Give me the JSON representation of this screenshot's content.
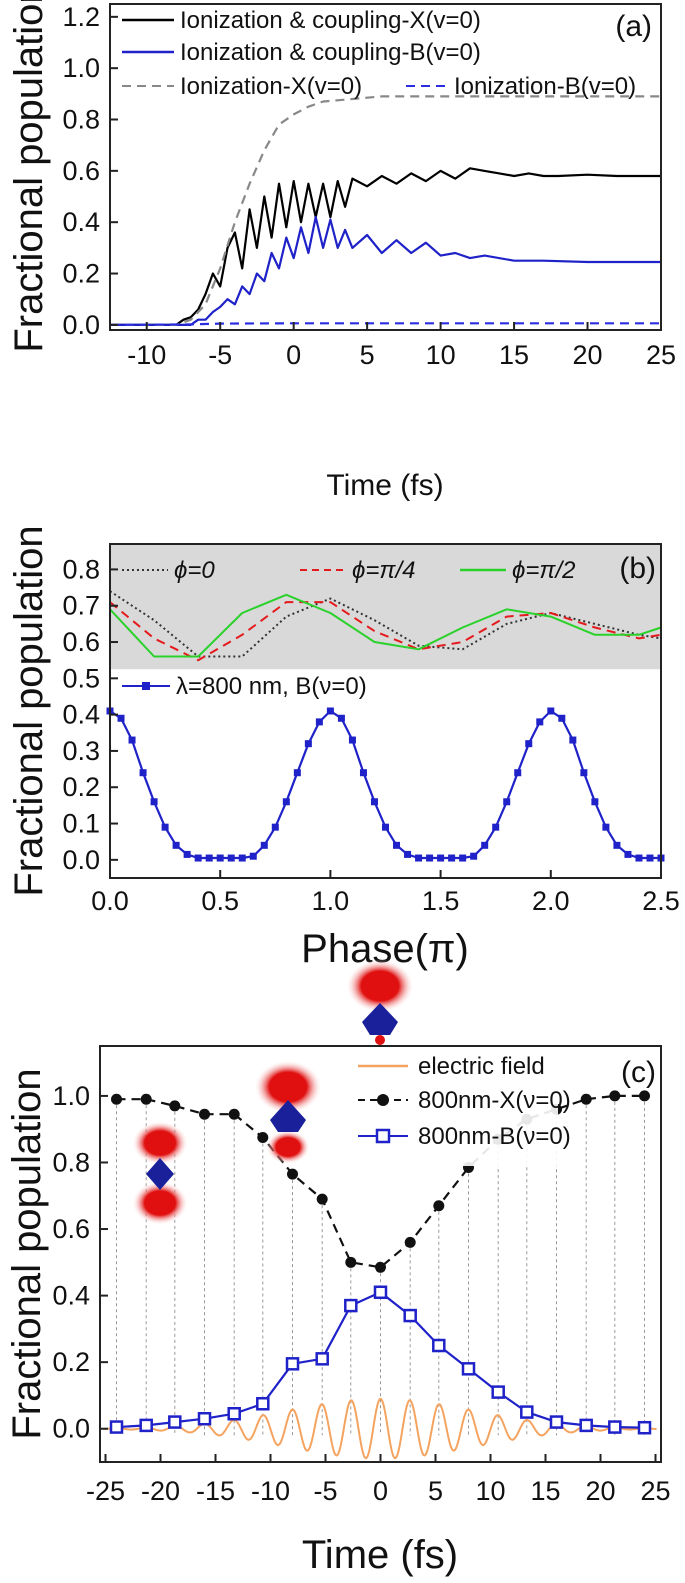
{
  "chart_data": [
    {
      "panel": "(a)",
      "type": "line",
      "xlabel": "Time (fs)",
      "ylabel": "Fractional population",
      "xlim": [
        -12.5,
        25
      ],
      "ylim": [
        -0.02,
        1.25
      ],
      "xticks": [
        -10,
        -5,
        0,
        5,
        10,
        15,
        20,
        25
      ],
      "xtick_labels": [
        "-10",
        "-5",
        "0",
        "5",
        "10",
        "15",
        "20",
        "25"
      ],
      "yticks": [
        0.0,
        0.2,
        0.4,
        0.6,
        0.8,
        1.0,
        1.2
      ],
      "ytick_labels": [
        "0.0",
        "0.2",
        "0.4",
        "0.6",
        "0.8",
        "1.0",
        "1.2"
      ],
      "series": [
        {
          "name": "Ionization & coupling-X(v=0)",
          "color": "#000000",
          "dash": "solid",
          "x": [
            -12.5,
            -8,
            -7.5,
            -7,
            -6.5,
            -6,
            -5.5,
            -5,
            -4.5,
            -4,
            -3.5,
            -3,
            -2.5,
            -2,
            -1.5,
            -1,
            -0.5,
            0,
            0.5,
            1,
            1.5,
            2,
            2.5,
            3,
            3.5,
            4,
            5,
            6,
            7,
            8,
            9,
            10,
            11,
            12,
            13,
            14,
            15,
            16,
            17,
            18,
            20,
            22,
            25
          ],
          "y": [
            0,
            0,
            0.02,
            0.03,
            0.06,
            0.12,
            0.2,
            0.15,
            0.3,
            0.36,
            0.22,
            0.45,
            0.3,
            0.5,
            0.34,
            0.55,
            0.38,
            0.56,
            0.4,
            0.55,
            0.42,
            0.55,
            0.42,
            0.56,
            0.46,
            0.57,
            0.54,
            0.58,
            0.55,
            0.59,
            0.56,
            0.6,
            0.57,
            0.61,
            0.6,
            0.59,
            0.58,
            0.59,
            0.58,
            0.58,
            0.585,
            0.58,
            0.58
          ]
        },
        {
          "name": "Ionization & coupling-B(v=0)",
          "color": "#1f22c8",
          "dash": "solid",
          "x": [
            -12.5,
            -7,
            -6.5,
            -6,
            -5.5,
            -5,
            -4.5,
            -4,
            -3.5,
            -3,
            -2.5,
            -2,
            -1.5,
            -1,
            -0.5,
            0,
            0.5,
            1,
            1.5,
            2,
            2.5,
            3,
            3.5,
            4,
            5,
            6,
            7,
            8,
            9,
            10,
            11,
            12,
            13,
            15,
            17,
            20,
            22,
            25
          ],
          "y": [
            0,
            0,
            0.02,
            0.02,
            0.05,
            0.07,
            0.1,
            0.08,
            0.15,
            0.12,
            0.2,
            0.17,
            0.28,
            0.22,
            0.34,
            0.26,
            0.38,
            0.28,
            0.42,
            0.3,
            0.41,
            0.3,
            0.37,
            0.3,
            0.35,
            0.28,
            0.33,
            0.28,
            0.32,
            0.27,
            0.28,
            0.26,
            0.27,
            0.25,
            0.25,
            0.245,
            0.245,
            0.245
          ]
        },
        {
          "name": "Ionization-X(v=0)",
          "color": "#888888",
          "dash": "dashed",
          "x": [
            -12.5,
            -8,
            -7,
            -6,
            -5,
            -4,
            -3,
            -2,
            -1,
            0,
            1,
            2,
            3,
            4,
            5,
            6,
            8,
            10,
            15,
            20,
            25
          ],
          "y": [
            0,
            0,
            0.02,
            0.08,
            0.22,
            0.4,
            0.55,
            0.68,
            0.78,
            0.82,
            0.85,
            0.87,
            0.875,
            0.88,
            0.885,
            0.89,
            0.89,
            0.89,
            0.89,
            0.89,
            0.89
          ]
        },
        {
          "name": "Ionization-B(v=0)",
          "color": "#2a2de0",
          "dash": "dashed",
          "x": [
            -12.5,
            -7,
            -5,
            0,
            5,
            10,
            15,
            20,
            25
          ],
          "y": [
            0,
            0.002,
            0.005,
            0.006,
            0.006,
            0.006,
            0.006,
            0.006,
            0.006
          ]
        }
      ],
      "annotation": "(a)"
    },
    {
      "panel": "(b)",
      "type": "line",
      "xlabel": "Phase(π)",
      "ylabel": "Fractional population",
      "xlim": [
        0,
        2.5
      ],
      "ylim": [
        -0.05,
        0.87
      ],
      "xticks": [
        0.0,
        0.5,
        1.0,
        1.5,
        2.0,
        2.5
      ],
      "xtick_labels": [
        "0.0",
        "0.5",
        "1.0",
        "1.5",
        "2.0",
        "2.5"
      ],
      "yticks": [
        0.0,
        0.1,
        0.2,
        0.3,
        0.4,
        0.5,
        0.6,
        0.7,
        0.8
      ],
      "ytick_labels": [
        "0.0",
        "0.1",
        "0.2",
        "0.3",
        "0.4",
        "0.5",
        "0.6",
        "0.7",
        "0.8"
      ],
      "shaded_band": [
        0.525,
        0.87
      ],
      "inset_series": [
        {
          "name": "ϕ=0",
          "color": "#333333",
          "dash": "dotted",
          "x": [
            0,
            0.2,
            0.4,
            0.6,
            0.8,
            1.0,
            1.2,
            1.4,
            1.6,
            1.8,
            2.0,
            2.2,
            2.4,
            2.5
          ],
          "y": [
            0.74,
            0.66,
            0.56,
            0.56,
            0.67,
            0.72,
            0.66,
            0.59,
            0.58,
            0.65,
            0.68,
            0.65,
            0.62,
            0.61
          ]
        },
        {
          "name": "ϕ=π/4",
          "color": "#e41a1c",
          "dash": "dashed",
          "x": [
            0,
            0.2,
            0.4,
            0.6,
            0.8,
            1.0,
            1.2,
            1.4,
            1.6,
            1.8,
            2.0,
            2.2,
            2.4,
            2.5
          ],
          "y": [
            0.71,
            0.61,
            0.55,
            0.62,
            0.71,
            0.71,
            0.63,
            0.58,
            0.6,
            0.67,
            0.68,
            0.64,
            0.61,
            0.62
          ]
        },
        {
          "name": "ϕ=π/2",
          "color": "#2bd12b",
          "dash": "solid",
          "x": [
            0,
            0.2,
            0.4,
            0.6,
            0.8,
            1.0,
            1.2,
            1.4,
            1.6,
            1.8,
            2.0,
            2.2,
            2.4,
            2.5
          ],
          "y": [
            0.69,
            0.56,
            0.56,
            0.68,
            0.73,
            0.68,
            0.6,
            0.58,
            0.64,
            0.69,
            0.67,
            0.62,
            0.62,
            0.64
          ]
        }
      ],
      "series": [
        {
          "name": "λ=800 nm, B(ν=0)",
          "color": "#1f22c8",
          "marker": "square",
          "x": [
            0,
            0.05,
            0.1,
            0.15,
            0.2,
            0.25,
            0.3,
            0.35,
            0.4,
            0.45,
            0.5,
            0.55,
            0.6,
            0.65,
            0.7,
            0.75,
            0.8,
            0.85,
            0.9,
            0.95,
            1.0,
            1.05,
            1.1,
            1.15,
            1.2,
            1.25,
            1.3,
            1.35,
            1.4,
            1.45,
            1.5,
            1.55,
            1.6,
            1.65,
            1.7,
            1.75,
            1.8,
            1.85,
            1.9,
            1.95,
            2.0,
            2.05,
            2.1,
            2.15,
            2.2,
            2.25,
            2.3,
            2.35,
            2.4,
            2.45,
            2.5
          ],
          "y": [
            0.41,
            0.39,
            0.33,
            0.24,
            0.16,
            0.09,
            0.04,
            0.015,
            0.005,
            0.005,
            0.005,
            0.005,
            0.005,
            0.01,
            0.04,
            0.09,
            0.16,
            0.24,
            0.32,
            0.38,
            0.41,
            0.39,
            0.33,
            0.24,
            0.16,
            0.09,
            0.04,
            0.015,
            0.005,
            0.005,
            0.005,
            0.005,
            0.005,
            0.01,
            0.04,
            0.09,
            0.16,
            0.24,
            0.32,
            0.38,
            0.41,
            0.39,
            0.33,
            0.24,
            0.16,
            0.09,
            0.04,
            0.015,
            0.005,
            0.005,
            0.005
          ]
        }
      ],
      "annotation": "(b)"
    },
    {
      "panel": "(c)",
      "type": "line",
      "xlabel": "Time (fs)",
      "ylabel": "Fractional population",
      "xlim": [
        -25.5,
        25.5
      ],
      "ylim": [
        -0.1,
        1.15
      ],
      "xticks": [
        -25,
        -20,
        -15,
        -10,
        -5,
        0,
        5,
        10,
        15,
        20,
        25
      ],
      "xtick_labels": [
        "-25",
        "-20",
        "-15",
        "-10",
        "-5",
        "0",
        "5",
        "10",
        "15",
        "20",
        "25"
      ],
      "yticks": [
        0.0,
        0.2,
        0.4,
        0.6,
        0.8,
        1.0
      ],
      "ytick_labels": [
        "0.0",
        "0.2",
        "0.4",
        "0.6",
        "0.8",
        "1.0"
      ],
      "series": [
        {
          "name": "electric field",
          "color": "#f4a460",
          "dash": "solid",
          "kind": "field",
          "amplitude": 0.09,
          "period_fs": 2.67,
          "envelope_fwhm_fs": 20
        },
        {
          "name": "800nm-X(ν=0)",
          "color": "#111111",
          "dash": "dashed",
          "marker": "circle",
          "x": [
            -24,
            -21.3,
            -18.7,
            -16,
            -13.3,
            -10.7,
            -8,
            -5.3,
            -2.7,
            0,
            2.7,
            5.3,
            8,
            10.7,
            13.3,
            16,
            18.7,
            21.3,
            24
          ],
          "y": [
            0.99,
            0.99,
            0.97,
            0.945,
            0.945,
            0.875,
            0.765,
            0.69,
            0.5,
            0.485,
            0.56,
            0.67,
            0.785,
            0.87,
            0.93,
            0.96,
            0.99,
            1.0,
            1.0
          ]
        },
        {
          "name": "800nm-B(ν=0)",
          "color": "#1f22c8",
          "dash": "solid",
          "marker": "square",
          "x": [
            -24,
            -21.3,
            -18.7,
            -16,
            -13.3,
            -10.7,
            -8,
            -5.3,
            -2.7,
            0,
            2.7,
            5.3,
            8,
            10.7,
            13.3,
            16,
            18.7,
            21.3,
            24
          ],
          "y": [
            0.005,
            0.01,
            0.02,
            0.03,
            0.045,
            0.075,
            0.195,
            0.21,
            0.37,
            0.41,
            0.34,
            0.25,
            0.18,
            0.11,
            0.05,
            0.02,
            0.01,
            0.005,
            0.003
          ]
        }
      ],
      "annotation": "(c)"
    }
  ]
}
